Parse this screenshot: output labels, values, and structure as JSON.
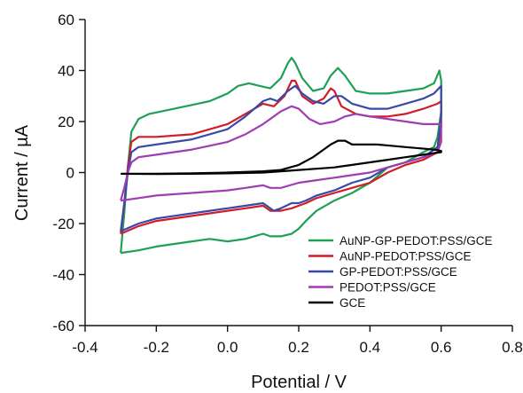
{
  "chart_data": {
    "type": "line",
    "title": "",
    "xlabel": "Potential / V",
    "ylabel": "Current / µA",
    "xlim": [
      -0.4,
      0.8
    ],
    "ylim": [
      -60,
      60
    ],
    "xticks": [
      -0.4,
      -0.2,
      0.0,
      0.2,
      0.4,
      0.6,
      0.8
    ],
    "xtick_labels": [
      "-0.4",
      "-0.2",
      "0.0",
      "0.2",
      "0.4",
      "0.6",
      "0.8"
    ],
    "yticks": [
      -60,
      -40,
      -20,
      0,
      20,
      40,
      60
    ],
    "ytick_labels": [
      "-60",
      "-40",
      "-20",
      "0",
      "20",
      "40",
      "60"
    ],
    "grid": false,
    "legend_position": "bottom-right",
    "series": [
      {
        "name": "AuNP-GP-PEDOT:PSS/GCE",
        "color": "#1fa055",
        "points": [
          [
            -0.3,
            -31.5
          ],
          [
            -0.29,
            -16
          ],
          [
            -0.28,
            2
          ],
          [
            -0.27,
            16
          ],
          [
            -0.25,
            21
          ],
          [
            -0.22,
            23
          ],
          [
            -0.15,
            25
          ],
          [
            -0.1,
            26.5
          ],
          [
            -0.05,
            28
          ],
          [
            0.0,
            31
          ],
          [
            0.03,
            34
          ],
          [
            0.06,
            35
          ],
          [
            0.09,
            34
          ],
          [
            0.12,
            33
          ],
          [
            0.15,
            37
          ],
          [
            0.17,
            43
          ],
          [
            0.18,
            45
          ],
          [
            0.19,
            43
          ],
          [
            0.21,
            37
          ],
          [
            0.24,
            32
          ],
          [
            0.27,
            33
          ],
          [
            0.29,
            38
          ],
          [
            0.31,
            41
          ],
          [
            0.33,
            38
          ],
          [
            0.36,
            32
          ],
          [
            0.4,
            31
          ],
          [
            0.45,
            31
          ],
          [
            0.5,
            32
          ],
          [
            0.55,
            33
          ],
          [
            0.58,
            35
          ],
          [
            0.595,
            40
          ],
          [
            0.6,
            36
          ],
          [
            0.6,
            24
          ],
          [
            0.59,
            14
          ],
          [
            0.58,
            10
          ],
          [
            0.55,
            8
          ],
          [
            0.5,
            4
          ],
          [
            0.45,
            2
          ],
          [
            0.4,
            -4
          ],
          [
            0.35,
            -8
          ],
          [
            0.3,
            -11
          ],
          [
            0.25,
            -15
          ],
          [
            0.22,
            -19
          ],
          [
            0.2,
            -22
          ],
          [
            0.18,
            -24
          ],
          [
            0.15,
            -25
          ],
          [
            0.12,
            -25
          ],
          [
            0.1,
            -24
          ],
          [
            0.05,
            -26
          ],
          [
            0.0,
            -27
          ],
          [
            -0.05,
            -26
          ],
          [
            -0.1,
            -27
          ],
          [
            -0.15,
            -28
          ],
          [
            -0.2,
            -29
          ],
          [
            -0.25,
            -30.5
          ],
          [
            -0.3,
            -31.5
          ]
        ]
      },
      {
        "name": "AuNP-PEDOT:PSS/GCE",
        "color": "#d01e28",
        "points": [
          [
            -0.3,
            -24
          ],
          [
            -0.29,
            -12
          ],
          [
            -0.28,
            2
          ],
          [
            -0.27,
            12
          ],
          [
            -0.25,
            14
          ],
          [
            -0.2,
            14
          ],
          [
            -0.1,
            15
          ],
          [
            0.0,
            19
          ],
          [
            0.05,
            23
          ],
          [
            0.1,
            27
          ],
          [
            0.13,
            26
          ],
          [
            0.16,
            30
          ],
          [
            0.18,
            36
          ],
          [
            0.19,
            36
          ],
          [
            0.21,
            30
          ],
          [
            0.24,
            27
          ],
          [
            0.27,
            29
          ],
          [
            0.29,
            33
          ],
          [
            0.3,
            32
          ],
          [
            0.32,
            26
          ],
          [
            0.36,
            23
          ],
          [
            0.4,
            22
          ],
          [
            0.45,
            22
          ],
          [
            0.5,
            23
          ],
          [
            0.55,
            25
          ],
          [
            0.59,
            27
          ],
          [
            0.6,
            28
          ],
          [
            0.6,
            18
          ],
          [
            0.59,
            8
          ],
          [
            0.55,
            5
          ],
          [
            0.5,
            3
          ],
          [
            0.45,
            0
          ],
          [
            0.4,
            -4
          ],
          [
            0.35,
            -6
          ],
          [
            0.3,
            -8
          ],
          [
            0.25,
            -10
          ],
          [
            0.22,
            -12
          ],
          [
            0.2,
            -13
          ],
          [
            0.18,
            -14
          ],
          [
            0.15,
            -15
          ],
          [
            0.12,
            -15
          ],
          [
            0.1,
            -13
          ],
          [
            0.05,
            -14
          ],
          [
            0.0,
            -15
          ],
          [
            -0.1,
            -17
          ],
          [
            -0.2,
            -19
          ],
          [
            -0.25,
            -21
          ],
          [
            -0.3,
            -24
          ]
        ]
      },
      {
        "name": "GP-PEDOT:PSS/GCE",
        "color": "#3a49a8",
        "points": [
          [
            -0.3,
            -23
          ],
          [
            -0.29,
            -12
          ],
          [
            -0.28,
            0
          ],
          [
            -0.27,
            8
          ],
          [
            -0.25,
            10
          ],
          [
            -0.2,
            11
          ],
          [
            -0.1,
            13
          ],
          [
            0.0,
            17
          ],
          [
            0.05,
            22
          ],
          [
            0.1,
            28
          ],
          [
            0.12,
            29
          ],
          [
            0.14,
            28
          ],
          [
            0.17,
            32
          ],
          [
            0.19,
            34
          ],
          [
            0.21,
            31
          ],
          [
            0.24,
            28
          ],
          [
            0.27,
            27
          ],
          [
            0.3,
            30
          ],
          [
            0.32,
            30
          ],
          [
            0.35,
            27
          ],
          [
            0.4,
            25
          ],
          [
            0.45,
            25
          ],
          [
            0.5,
            27
          ],
          [
            0.55,
            29
          ],
          [
            0.58,
            31
          ],
          [
            0.6,
            34
          ],
          [
            0.6,
            22
          ],
          [
            0.59,
            10
          ],
          [
            0.55,
            6
          ],
          [
            0.5,
            4
          ],
          [
            0.45,
            2
          ],
          [
            0.4,
            -2
          ],
          [
            0.35,
            -4
          ],
          [
            0.3,
            -7
          ],
          [
            0.25,
            -9
          ],
          [
            0.22,
            -11
          ],
          [
            0.2,
            -12
          ],
          [
            0.18,
            -12
          ],
          [
            0.15,
            -14
          ],
          [
            0.13,
            -15
          ],
          [
            0.1,
            -12
          ],
          [
            0.05,
            -13
          ],
          [
            0.0,
            -14
          ],
          [
            -0.1,
            -16
          ],
          [
            -0.2,
            -18
          ],
          [
            -0.25,
            -20
          ],
          [
            -0.3,
            -23
          ]
        ]
      },
      {
        "name": "PEDOT:PSS/GCE",
        "color": "#a03cb4",
        "points": [
          [
            -0.3,
            -11
          ],
          [
            -0.29,
            -6
          ],
          [
            -0.28,
            0
          ],
          [
            -0.27,
            4
          ],
          [
            -0.25,
            6
          ],
          [
            -0.2,
            7
          ],
          [
            -0.1,
            9
          ],
          [
            0.0,
            12
          ],
          [
            0.05,
            15
          ],
          [
            0.1,
            19
          ],
          [
            0.15,
            24
          ],
          [
            0.18,
            26
          ],
          [
            0.2,
            25
          ],
          [
            0.23,
            21
          ],
          [
            0.26,
            19
          ],
          [
            0.3,
            20
          ],
          [
            0.33,
            22
          ],
          [
            0.36,
            23
          ],
          [
            0.4,
            22
          ],
          [
            0.45,
            21
          ],
          [
            0.5,
            20
          ],
          [
            0.55,
            19
          ],
          [
            0.6,
            19
          ],
          [
            0.6,
            12
          ],
          [
            0.59,
            8
          ],
          [
            0.55,
            6
          ],
          [
            0.5,
            4
          ],
          [
            0.45,
            2
          ],
          [
            0.4,
            0
          ],
          [
            0.35,
            -1
          ],
          [
            0.3,
            -2
          ],
          [
            0.25,
            -3
          ],
          [
            0.2,
            -4
          ],
          [
            0.15,
            -6
          ],
          [
            0.12,
            -6
          ],
          [
            0.1,
            -5
          ],
          [
            0.05,
            -6
          ],
          [
            0.0,
            -7
          ],
          [
            -0.1,
            -8
          ],
          [
            -0.2,
            -9
          ],
          [
            -0.25,
            -10
          ],
          [
            -0.3,
            -11
          ]
        ]
      },
      {
        "name": "GCE",
        "color": "#000000",
        "points": [
          [
            -0.3,
            -0.5
          ],
          [
            -0.2,
            -0.5
          ],
          [
            -0.1,
            -0.3
          ],
          [
            0.0,
            0
          ],
          [
            0.1,
            0.5
          ],
          [
            0.15,
            1
          ],
          [
            0.2,
            3
          ],
          [
            0.24,
            6
          ],
          [
            0.27,
            9
          ],
          [
            0.29,
            11
          ],
          [
            0.31,
            12.5
          ],
          [
            0.33,
            12.5
          ],
          [
            0.35,
            11
          ],
          [
            0.38,
            11
          ],
          [
            0.42,
            11
          ],
          [
            0.46,
            10.5
          ],
          [
            0.5,
            10
          ],
          [
            0.54,
            9.5
          ],
          [
            0.58,
            9
          ],
          [
            0.6,
            8.5
          ],
          [
            0.6,
            8
          ],
          [
            0.55,
            7
          ],
          [
            0.5,
            6
          ],
          [
            0.45,
            5
          ],
          [
            0.4,
            4
          ],
          [
            0.35,
            3
          ],
          [
            0.3,
            2
          ],
          [
            0.25,
            1.5
          ],
          [
            0.2,
            1
          ],
          [
            0.15,
            0.5
          ],
          [
            0.1,
            0
          ],
          [
            0.0,
            -0.3
          ],
          [
            -0.1,
            -0.5
          ],
          [
            -0.2,
            -0.6
          ],
          [
            -0.3,
            -0.5
          ]
        ]
      }
    ]
  }
}
